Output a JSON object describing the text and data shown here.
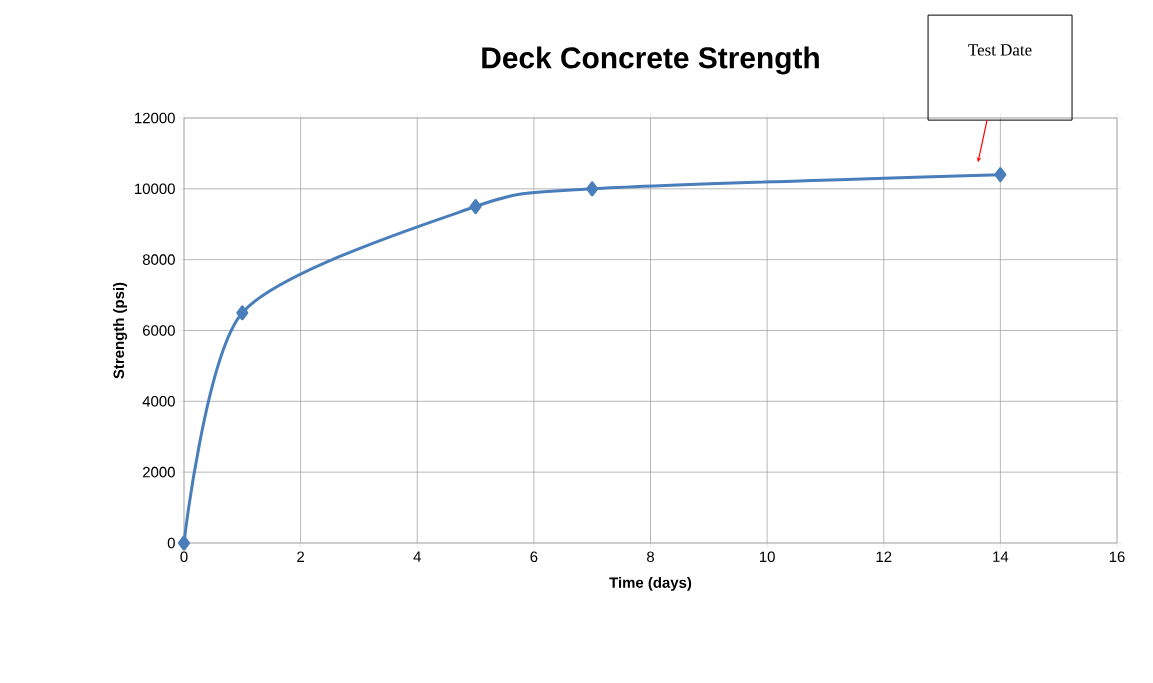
{
  "chart_data": {
    "type": "line",
    "title": "Deck Concrete Strength",
    "xlabel": "Time (days)",
    "ylabel": "Strength (psi)",
    "x": [
      0,
      1,
      5,
      7,
      14
    ],
    "series": [
      {
        "color": "#4a7ebb",
        "values": [
          0,
          6500,
          9500,
          10000,
          10400
        ]
      }
    ],
    "xlim": [
      0,
      16
    ],
    "xticks": [
      0,
      2,
      4,
      6,
      8,
      10,
      12,
      14,
      16
    ],
    "ylim": [
      0,
      12000
    ],
    "yticks": [
      0,
      2000,
      4000,
      6000,
      8000,
      10000,
      12000
    ],
    "grid": true,
    "marker": "diamond",
    "line_style": "solid",
    "annotations": [
      "Test Date"
    ]
  }
}
